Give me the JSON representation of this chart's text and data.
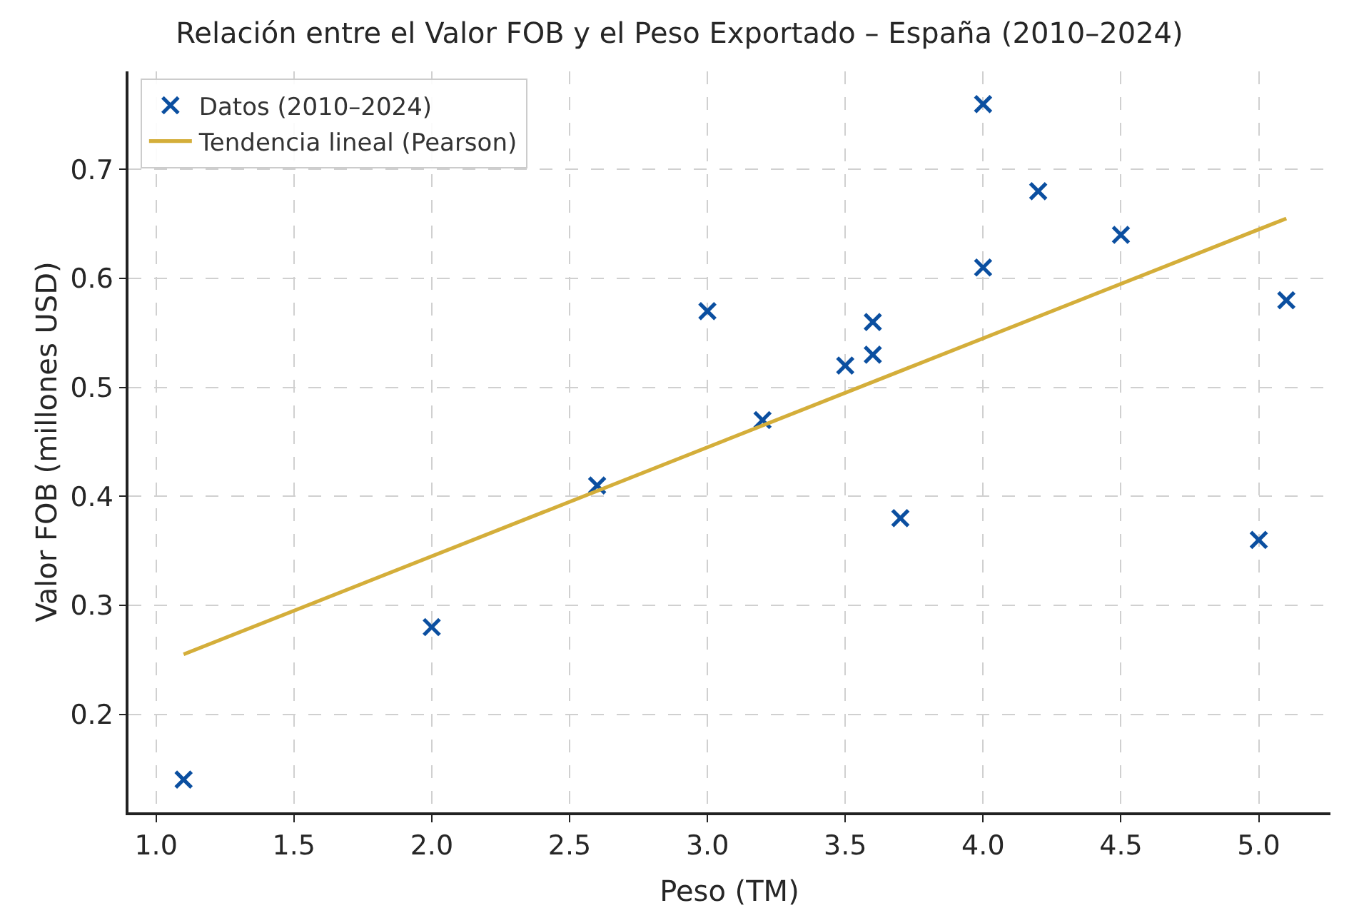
{
  "chart_data": {
    "type": "scatter",
    "title": "Relación entre el Valor FOB y el Peso Exportado – España (2010–2024)",
    "xlabel": "Peso (TM)",
    "ylabel": "Valor FOB (millones USD)",
    "series": [
      {
        "name": "Datos (2010–2024)",
        "color": "#0b4fa0",
        "marker": "cross",
        "x": [
          1.1,
          2.0,
          2.6,
          3.0,
          3.2,
          3.5,
          3.6,
          3.6,
          3.7,
          4.0,
          4.0,
          4.2,
          4.5,
          5.0,
          5.1
        ],
        "values": [
          0.14,
          0.28,
          0.41,
          0.57,
          0.47,
          0.52,
          0.56,
          0.53,
          0.38,
          0.76,
          0.61,
          0.68,
          0.64,
          0.36,
          0.58
        ]
      },
      {
        "name": "Tendencia lineal (Pearson)",
        "type": "line",
        "color": "#d4ae3a",
        "marker": "none",
        "line_style": "solid",
        "x": [
          1.1,
          5.1
        ],
        "values": [
          0.255,
          0.655
        ]
      }
    ],
    "xlim": [
      0.9,
      5.26
    ],
    "ylim": [
      0.11,
      0.79
    ],
    "xticks": [
      {
        "value": 1,
        "label": "1.0"
      },
      1.5,
      {
        "value": 2,
        "label": "2.0"
      },
      2.5,
      {
        "value": 3,
        "label": "3.0"
      },
      3.5,
      {
        "value": 4,
        "label": "4.0"
      },
      4.5,
      {
        "value": 5,
        "label": "5.0"
      }
    ],
    "yticks": [
      0.2,
      0.3,
      0.4,
      0.5,
      0.6,
      0.7
    ],
    "grid": true,
    "legend": "top left"
  }
}
